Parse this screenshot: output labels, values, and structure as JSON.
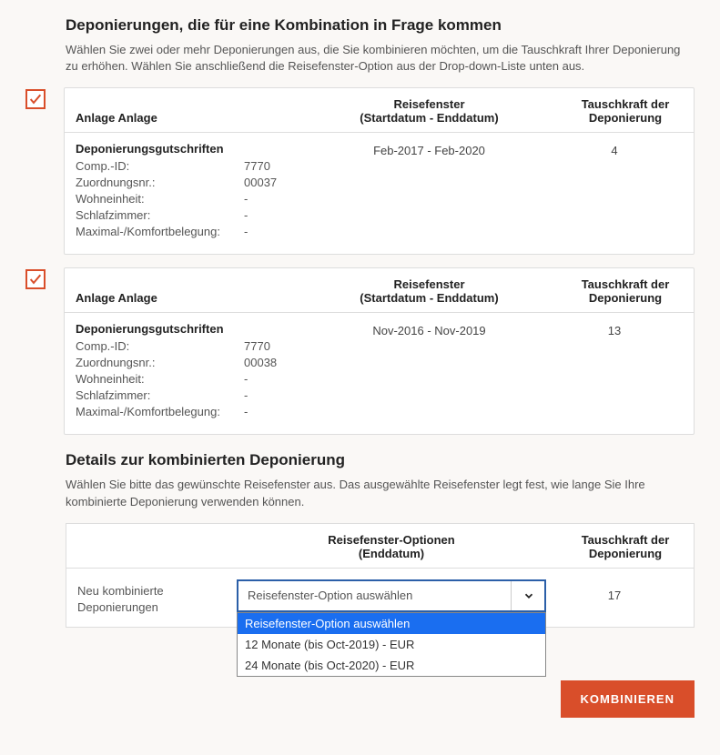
{
  "section1": {
    "title": "Deponierungen, die für eine Kombination in Frage kommen",
    "intro": "Wählen Sie zwei oder mehr Deponierungen aus, die Sie kombinieren möchten, um die Tauschkraft Ihrer Deponierung zu erhöhen. Wählen Sie anschließend die Reisefenster-Option aus der Drop-down-Liste unten aus."
  },
  "headers": {
    "anlage": "Anlage Anlage",
    "reisefenster_line1": "Reisefenster",
    "reisefenster_line2": "(Startdatum - Enddatum)",
    "tauschkraft_line1": "Tauschkraft der",
    "tauschkraft_line2": "Deponierung"
  },
  "dep_block_title": "Deponierungsgutschriften",
  "labels": {
    "comp_id": "Comp.-ID:",
    "zuordnung": "Zuordnungsnr.:",
    "wohneinheit": "Wohneinheit:",
    "schlafzimmer": "Schlafzimmer:",
    "maximal": "Maximal-/Komfortbelegung:"
  },
  "deposits": [
    {
      "checked": true,
      "comp_id": "7770",
      "zuordnung": "00037",
      "wohneinheit": "-",
      "schlafzimmer": "-",
      "maximal": "-",
      "window": "Feb-2017 - Feb-2020",
      "power": "4"
    },
    {
      "checked": true,
      "comp_id": "7770",
      "zuordnung": "00038",
      "wohneinheit": "-",
      "schlafzimmer": "-",
      "maximal": "-",
      "window": "Nov-2016 - Nov-2019",
      "power": "13"
    }
  ],
  "section2": {
    "title": "Details zur kombinierten Deponierung",
    "intro": "Wählen Sie bitte das gewünschte Reisefenster aus. Das ausgewählte Reisefenster legt fest, wie lange Sie Ihre kombinierte Deponierung verwenden können."
  },
  "combined": {
    "headers": {
      "optionen_line1": "Reisefenster-Optionen",
      "optionen_line2": "(Enddatum)",
      "tauschkraft_line1": "Tauschkraft der",
      "tauschkraft_line2": "Deponierung"
    },
    "row_label_line1": "Neu kombinierte",
    "row_label_line2": "Deponierungen",
    "select_placeholder": "Reisefenster-Option auswählen",
    "options": [
      "Reisefenster-Option auswählen",
      "12 Monate (bis Oct-2019) - EUR",
      "24 Monate (bis Oct-2020) - EUR"
    ],
    "selected_index": 0,
    "power": "17"
  },
  "button_label": "KOMBINIEREN",
  "colors": {
    "accent": "#d94e2a",
    "link_blue": "#1a6ef0",
    "border": "#dddddd",
    "bg": "#faf8f6"
  }
}
